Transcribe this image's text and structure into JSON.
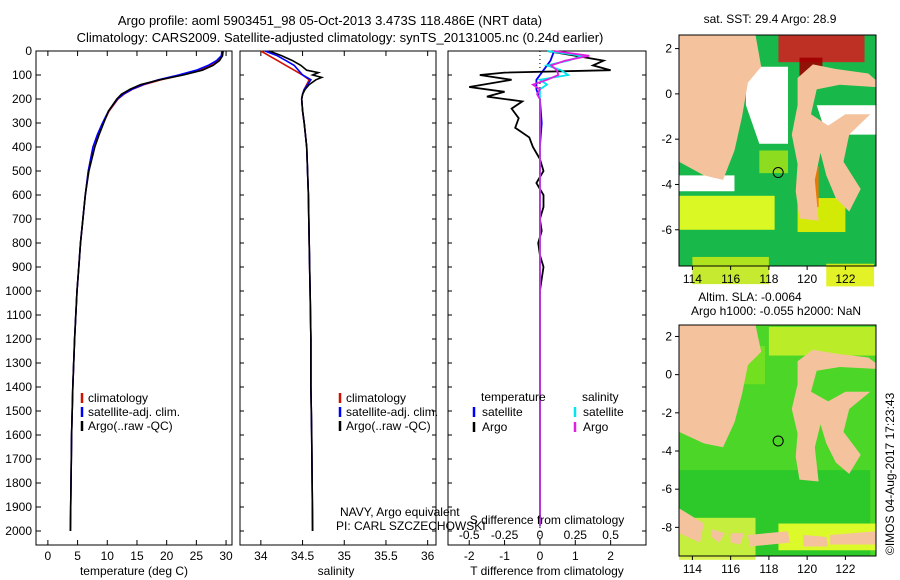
{
  "header": {
    "line1": "Argo profile: aoml 5903451_98 05-Oct-2013 3.473S 118.486E (NRT data)",
    "line2": "Climatology: CARS2009. Satellite-adjusted climatology: synTS_20131005.nc (0.24d earlier)"
  },
  "colors": {
    "climatology": "#d01000",
    "satellite": "#0000ff",
    "argo": "#000000",
    "sal_satellite": "#00e5ee",
    "sal_argo": "#e020e0",
    "land": "#f4c39e",
    "sea_green": "#22c832"
  },
  "chart_data": [
    {
      "id": "temperature",
      "type": "line",
      "xlabel": "temperature (deg C)",
      "xlim": [
        -2,
        31
      ],
      "xticks": [
        "0",
        "5",
        "10",
        "15",
        "20",
        "25",
        "30"
      ],
      "ylim": [
        0,
        2080
      ],
      "yticks": [
        "0",
        "100",
        "200",
        "300",
        "400",
        "500",
        "600",
        "700",
        "800",
        "900",
        "1000",
        "1100",
        "1200",
        "1300",
        "1400",
        "1500",
        "1600",
        "1700",
        "1800",
        "1900",
        "2000"
      ],
      "legend": [
        "climatology",
        "satellite-adj. clim.",
        "Argo(..raw -QC)"
      ],
      "series": [
        {
          "name": "climatology",
          "depth": [
            0,
            20,
            40,
            60,
            80,
            100,
            120,
            140,
            160,
            180,
            200,
            250,
            300,
            350,
            400,
            500,
            600,
            700,
            800,
            900,
            1000,
            1200,
            1400,
            1600,
            1800,
            2000
          ],
          "values": [
            29.4,
            29.3,
            28.6,
            27.3,
            25.5,
            22.6,
            19.0,
            16.2,
            14.2,
            12.8,
            11.8,
            10.3,
            9.3,
            8.4,
            7.6,
            6.8,
            6.3,
            5.9,
            5.5,
            5.2,
            4.9,
            4.5,
            4.2,
            4.0,
            3.9,
            3.8
          ]
        },
        {
          "name": "satellite-adj. clim.",
          "depth": [
            0,
            20,
            40,
            60,
            80,
            100,
            120,
            140,
            160,
            180,
            200,
            250,
            300,
            350,
            400,
            500,
            600,
            700,
            800,
            900,
            1000,
            1200,
            1400,
            1600,
            1800,
            2000
          ],
          "values": [
            29.3,
            29.2,
            28.4,
            27.0,
            25.0,
            22.0,
            18.6,
            16.0,
            14.1,
            12.7,
            11.7,
            10.2,
            9.2,
            8.3,
            7.6,
            6.8,
            6.3,
            5.9,
            5.5,
            5.2,
            4.9,
            4.5,
            4.2,
            4.0,
            3.9,
            3.8
          ]
        },
        {
          "name": "Argo(..raw -QC)",
          "depth": [
            0,
            20,
            40,
            60,
            80,
            100,
            120,
            140,
            160,
            180,
            200,
            250,
            300,
            350,
            400,
            500,
            600,
            700,
            800,
            900,
            1000,
            1200,
            1400,
            1600,
            1800,
            2000
          ],
          "values": [
            29.5,
            29.4,
            28.9,
            27.8,
            26.0,
            22.8,
            18.8,
            15.6,
            13.8,
            12.4,
            11.6,
            10.2,
            9.4,
            8.6,
            7.9,
            6.9,
            6.3,
            5.9,
            5.5,
            5.2,
            4.9,
            4.5,
            4.2,
            4.0,
            3.9,
            3.8
          ]
        }
      ]
    },
    {
      "id": "salinity",
      "type": "line",
      "xlabel": "salinity",
      "xlim": [
        33.75,
        36.1
      ],
      "xticks": [
        "34",
        "34.5",
        "35",
        "35.5",
        "36"
      ],
      "ylim": [
        0,
        2080
      ],
      "legend": [
        "climatology",
        "satellite-adj. clim.",
        "Argo(..raw -QC)"
      ],
      "series": [
        {
          "name": "climatology",
          "depth": [
            0,
            20,
            40,
            60,
            80,
            100,
            120,
            140,
            160,
            180,
            200,
            250,
            300,
            400,
            600,
            800,
            1000,
            1200,
            1400,
            1600,
            2000
          ],
          "values": [
            34.0,
            34.1,
            34.2,
            34.3,
            34.4,
            34.5,
            34.58,
            34.55,
            34.52,
            34.5,
            34.49,
            34.5,
            34.52,
            34.55,
            34.57,
            34.58,
            34.59,
            34.6,
            34.6,
            34.61,
            34.62
          ]
        },
        {
          "name": "satellite-adj. clim.",
          "depth": [
            0,
            20,
            40,
            60,
            80,
            100,
            120,
            140,
            160,
            180,
            200,
            250,
            300,
            400,
            600,
            800,
            1000,
            1200,
            1400,
            1600,
            2000
          ],
          "values": [
            34.05,
            34.2,
            34.3,
            34.4,
            34.45,
            34.5,
            34.6,
            34.56,
            34.52,
            34.5,
            34.49,
            34.5,
            34.52,
            34.55,
            34.57,
            34.58,
            34.59,
            34.6,
            34.6,
            34.61,
            34.62
          ]
        },
        {
          "name": "Argo(..raw -QC)",
          "depth": [
            0,
            20,
            40,
            60,
            80,
            90,
            100,
            110,
            120,
            140,
            160,
            180,
            200,
            250,
            300,
            400,
            600,
            800,
            1000,
            1200,
            1400,
            1600,
            2000
          ],
          "values": [
            34.1,
            34.25,
            34.38,
            34.48,
            34.55,
            34.69,
            34.62,
            34.73,
            34.66,
            34.58,
            34.53,
            34.5,
            34.49,
            34.5,
            34.52,
            34.55,
            34.57,
            34.58,
            34.59,
            34.6,
            34.6,
            34.61,
            34.62
          ]
        }
      ]
    },
    {
      "id": "differences",
      "type": "line",
      "xlabel": "T difference from climatology",
      "x2label": "S difference from climatology",
      "xlim": [
        -2.6,
        3.0
      ],
      "xticks": [
        "-2",
        "-1",
        "0",
        "1",
        "2"
      ],
      "x2ticks": [
        "-0.5",
        "-0.25",
        "0",
        "0.25",
        "0.5"
      ],
      "ylim": [
        0,
        2080
      ],
      "legend_temperature_title": "temperature",
      "legend_salinity_title": "salinity",
      "legend_labels": [
        "satellite",
        "Argo",
        "satellite",
        "Argo"
      ],
      "series": [
        {
          "name": "T satellite",
          "depth": [
            0,
            40,
            80,
            120,
            160,
            200,
            300,
            400,
            600,
            800,
            1000,
            1400,
            1800,
            1980
          ],
          "values": [
            0.4,
            0.3,
            0.1,
            -0.1,
            -0.1,
            0.0,
            0.05,
            0.0,
            0.0,
            0.0,
            0.0,
            0.0,
            0.0,
            0.0
          ]
        },
        {
          "name": "T Argo",
          "depth": [
            0,
            20,
            40,
            60,
            80,
            90,
            100,
            120,
            150,
            170,
            190,
            210,
            240,
            280,
            320,
            360,
            400,
            450,
            500,
            550,
            600,
            650,
            700,
            750,
            800,
            850,
            900,
            1000,
            1200,
            1600,
            1980
          ],
          "values": [
            0.2,
            1.0,
            1.8,
            1.5,
            2.0,
            -1.0,
            -1.7,
            -0.8,
            -2.0,
            -1.0,
            -1.5,
            -0.5,
            -0.8,
            -0.6,
            -0.7,
            -0.3,
            -0.2,
            0.0,
            0.1,
            -0.1,
            0.1,
            0.1,
            0.0,
            0.05,
            -0.05,
            0.0,
            0.1,
            0.0,
            0.0,
            0.0,
            0.0
          ]
        },
        {
          "name": "S satellite",
          "depth": [
            0,
            20,
            40,
            60,
            80,
            100,
            120,
            140,
            160,
            200,
            300,
            500,
            800,
            1200,
            1600,
            1980
          ],
          "values": [
            0.05,
            0.3,
            0.2,
            0.05,
            0.15,
            0.2,
            0.0,
            0.05,
            0.0,
            0.0,
            0.0,
            0.0,
            0.0,
            0.0,
            0.0,
            0.0
          ]
        },
        {
          "name": "S Argo",
          "depth": [
            0,
            20,
            40,
            60,
            80,
            100,
            120,
            140,
            160,
            180,
            200,
            250,
            300,
            400,
            500,
            600,
            800,
            1200,
            1600,
            1980
          ],
          "values": [
            0.1,
            0.35,
            0.18,
            0.08,
            0.12,
            0.13,
            0.05,
            -0.05,
            0.0,
            -0.02,
            0.0,
            0.0,
            0.0,
            0.0,
            0.0,
            0.0,
            0.0,
            0.0,
            0.0,
            0.0
          ]
        }
      ]
    },
    {
      "id": "sst_map",
      "type": "heatmap",
      "title": "sat. SST: 29.4  Argo: 28.9",
      "xticks": [
        "114",
        "116",
        "118",
        "120",
        "122"
      ],
      "yticks": [
        "2",
        "0",
        "-2",
        "-4",
        "-6"
      ],
      "argo_position": [
        118.486,
        -3.473
      ]
    },
    {
      "id": "sla_map",
      "type": "heatmap",
      "title_line1": "Altim. SLA: -0.0064",
      "title_line2": "Argo h1000: -0.055  h2000: NaN",
      "xticks": [
        "114",
        "116",
        "118",
        "120",
        "122"
      ],
      "yticks": [
        "2",
        "0",
        "-2",
        "-4",
        "-6",
        "-8"
      ],
      "argo_position": [
        118.486,
        -3.473
      ]
    }
  ],
  "notes": {
    "navy": "NAVY, Argo equivalent",
    "pi": "PI: CARL SZCZECHOWSKI",
    "imos_label": "©IMOS 04-Aug-2017 17:23:43"
  }
}
